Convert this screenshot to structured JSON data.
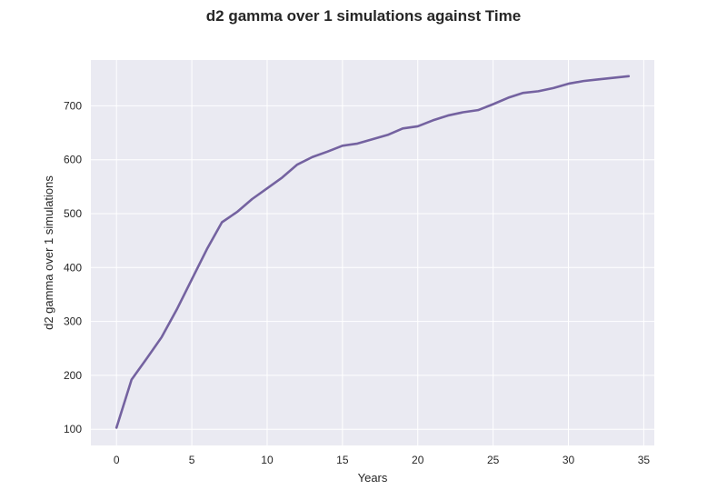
{
  "chart_data": {
    "type": "line",
    "title": "d2 gamma over 1 simulations against Time",
    "xlabel": "Years",
    "ylabel": "d2 gamma over 1 simulations",
    "xlim": [
      -1.7,
      35.7
    ],
    "ylim": [
      70,
      785
    ],
    "xticks": [
      0,
      5,
      10,
      15,
      20,
      25,
      30,
      35
    ],
    "yticks": [
      100,
      200,
      300,
      400,
      500,
      600,
      700
    ],
    "grid": true,
    "background": "#eaeaf2",
    "series": [
      {
        "color": "#7462a0",
        "x": [
          0,
          1,
          2,
          3,
          4,
          5,
          6,
          7,
          8,
          9,
          10,
          11,
          12,
          13,
          14,
          15,
          16,
          17,
          18,
          19,
          20,
          21,
          22,
          23,
          24,
          25,
          26,
          27,
          28,
          29,
          30,
          31,
          32,
          33,
          34
        ],
        "y": [
          103,
          192,
          231,
          271,
          322,
          378,
          434,
          484,
          503,
          527,
          547,
          567,
          591,
          605,
          615,
          626,
          630,
          638,
          646,
          658,
          662,
          673,
          682,
          688,
          692,
          703,
          715,
          724,
          727,
          733,
          741,
          746,
          749,
          752,
          755
        ]
      }
    ]
  }
}
